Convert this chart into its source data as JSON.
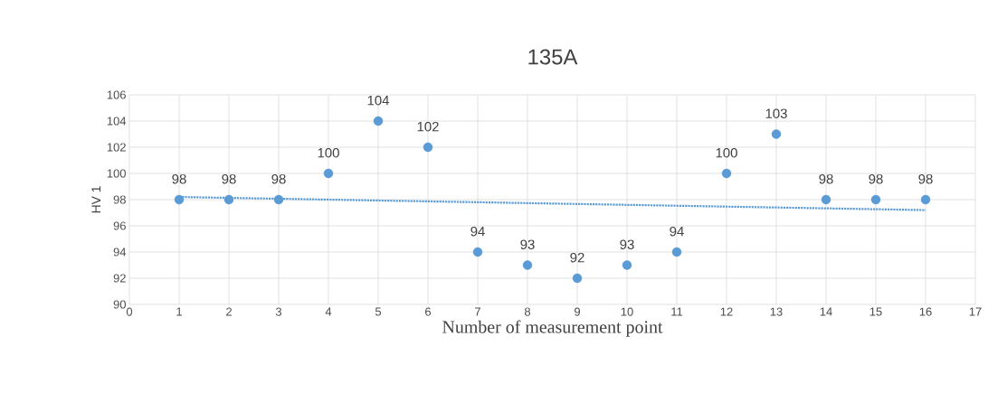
{
  "chart_data": {
    "type": "scatter",
    "title": "135A",
    "xlabel": "Number of measurement point",
    "ylabel": "HV 1",
    "series": [
      {
        "color": "#5b9bd5",
        "marker": "circle",
        "x": [
          1,
          2,
          3,
          4,
          5,
          6,
          7,
          8,
          9,
          10,
          11,
          12,
          13,
          14,
          15,
          16
        ],
        "values": [
          98,
          98,
          98,
          100,
          104,
          102,
          94,
          93,
          92,
          93,
          94,
          100,
          103,
          98,
          98,
          98
        ],
        "value_labels": [
          "98",
          "98",
          "98",
          "100",
          "104",
          "102",
          "94",
          "93",
          "92",
          "93",
          "94",
          "100",
          "103",
          "98",
          "98",
          "98"
        ]
      },
      {
        "type": "line",
        "color": "#5b9bd5",
        "line_style": "dotted",
        "marker": "none",
        "x": [
          1,
          16
        ],
        "values": [
          98.2,
          97.2
        ]
      }
    ],
    "xlim": [
      0,
      17
    ],
    "xticks": [
      0,
      1,
      2,
      3,
      4,
      5,
      6,
      7,
      8,
      9,
      10,
      11,
      12,
      13,
      14,
      15,
      16,
      17
    ],
    "ylim": [
      90,
      106
    ],
    "yticks": [
      90,
      92,
      94,
      96,
      98,
      100,
      102,
      104,
      106
    ],
    "grid": true
  }
}
